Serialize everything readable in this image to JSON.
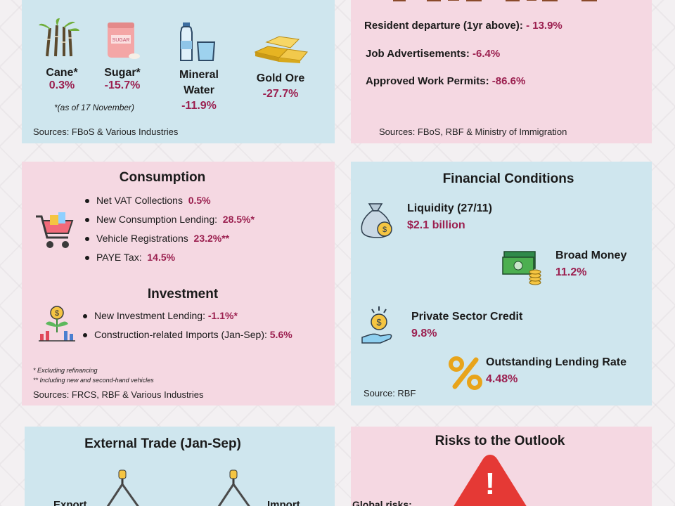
{
  "production": {
    "items": [
      {
        "label": "Cane*",
        "value": "0.3%"
      },
      {
        "label": "Sugar*",
        "value": "-15.7%"
      },
      {
        "label": "Mineral Water",
        "value": "-11.9%"
      },
      {
        "label": "Gold Ore",
        "value": "-27.7%"
      }
    ],
    "sugar_bag_text": "SUGAR",
    "note": "*(as of 17 November)",
    "source": "Sources: FBoS & Various Industries"
  },
  "labour": {
    "items": [
      {
        "label": "Resident departure (1yr above):",
        "value": "- 13.9%"
      },
      {
        "label": "Job Advertisements:",
        "value": "-6.4%"
      },
      {
        "label": "Approved Work Permits:",
        "value": "-86.6%"
      }
    ],
    "source": "Sources: FBoS, RBF & Ministry of Immigration"
  },
  "consumption": {
    "title": "Consumption",
    "items": [
      {
        "label": "Net VAT Collections",
        "value": "0.5%"
      },
      {
        "label": "New Consumption Lending:",
        "value": "28.5%*"
      },
      {
        "label": "Vehicle Registrations",
        "value": "23.2%**"
      },
      {
        "label": "PAYE Tax:",
        "value": "14.5%"
      }
    ]
  },
  "investment": {
    "title": "Investment",
    "items": [
      {
        "label": "New Investment Lending:",
        "value": "-1.1%*"
      },
      {
        "label": "Construction-related Imports (Jan-Sep):",
        "value": "5.6%"
      }
    ],
    "footnote1": "* Excluding refinancing",
    "footnote2": "** Including new and second-hand vehicles",
    "source": "Sources: FRCS, RBF & Various Industries"
  },
  "financial": {
    "title": "Financial Conditions",
    "liquidity_label": "Liquidity (27/11)",
    "liquidity_value": "$2.1 billion",
    "broad_money_label": "Broad Money",
    "broad_money_value": "11.2%",
    "psc_label": "Private Sector Credit",
    "psc_value": "9.8%",
    "olr_label": "Outstanding Lending Rate",
    "olr_value": "4.48%",
    "source": "Source: RBF"
  },
  "trade": {
    "title": "External Trade (Jan-Sep)",
    "export_label": "Export",
    "import_label": "Import"
  },
  "risks": {
    "title": "Risks to the Outlook",
    "global_label": "Global risks:",
    "warning_glyph": "!"
  },
  "colors": {
    "blue_panel": "#cfe6ee",
    "pink_panel": "#f5d8e2",
    "value_red": "#9b1f4f"
  }
}
